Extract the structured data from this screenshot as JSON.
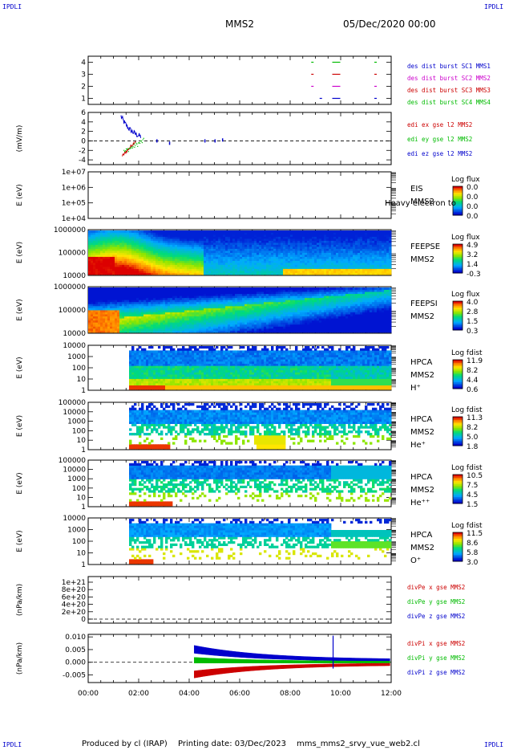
{
  "header": {
    "corner_label": "IPDLI",
    "spacecraft": "MMS2",
    "date": "05/Dec/2020 00:00"
  },
  "footer": {
    "produced_by": "Produced by cl (IRAP)",
    "printing_date": "Printing date: 03/Dec/2023",
    "script_name": "mms_mms2_srvy_vue_web2.cl"
  },
  "colors": {
    "blue": "#0000cc",
    "magenta": "#cc00cc",
    "red": "#cc0000",
    "green": "#00bb00",
    "spec_low": "#0000cc",
    "spec_high": "#cc0000"
  },
  "chart_data": [
    {
      "type": "scatter",
      "panel": "burst",
      "ylim": [
        0.5,
        4.5
      ],
      "yticks": [
        "1",
        "2",
        "3",
        "4"
      ],
      "xlim": [
        "00:00",
        "12:00"
      ],
      "series": [
        {
          "name": "des dist burst SC1 MMS1",
          "color": "#0000cc",
          "y": 1,
          "x": [
            "09:10",
            "09:40",
            "11:20"
          ]
        },
        {
          "name": "des dist burst SC2 MMS2",
          "color": "#cc00cc",
          "y": 2,
          "x": [
            "08:50",
            "09:40",
            "11:20"
          ]
        },
        {
          "name": "des dist burst SC3 MMS3",
          "color": "#cc0000",
          "y": 3,
          "x": [
            "08:50",
            "09:40",
            "11:20"
          ]
        },
        {
          "name": "des dist burst SC4 MMS4",
          "color": "#00bb00",
          "y": 4,
          "x": [
            "08:50",
            "09:40",
            "11:20"
          ]
        }
      ]
    },
    {
      "type": "line",
      "panel": "edi",
      "ylabel": "(mV/m)",
      "ylim": [
        -5,
        6
      ],
      "yticks": [
        "-4",
        "-2",
        "0",
        "2",
        "4",
        "6"
      ],
      "series": [
        {
          "name": "edi ex gse l2 MMS2",
          "color": "#cc0000"
        },
        {
          "name": "edi ey gse l2 MMS2",
          "color": "#00bb00"
        },
        {
          "name": "edi ez gse l2 MMS2",
          "color": "#0000cc"
        }
      ]
    },
    {
      "type": "heatmap",
      "panel": "eis",
      "ylabel": "E (eV)",
      "yticks": [
        "1e+04",
        "1e+05",
        "1e+06",
        "1e+07"
      ],
      "instrument": [
        "EIS",
        "MMS2"
      ],
      "overlap_label": "Heavy electron to",
      "colorbar": {
        "title": "Log flux",
        "ticks": [
          "0.0",
          "0.0",
          "0.0",
          "0.0"
        ]
      }
    },
    {
      "type": "heatmap",
      "panel": "feepse",
      "ylabel": "E (eV)",
      "yticks": [
        "10000",
        "100000",
        "1000000"
      ],
      "instrument": [
        "FEEPSE",
        "MMS2"
      ],
      "colorbar": {
        "title": "Log flux",
        "ticks": [
          "4.9",
          "3.2",
          "1.4",
          "-0.3"
        ]
      }
    },
    {
      "type": "heatmap",
      "panel": "feepsi",
      "ylabel": "E (eV)",
      "yticks": [
        "10000",
        "100000",
        "1000000"
      ],
      "instrument": [
        "FEEPSI",
        "MMS2"
      ],
      "colorbar": {
        "title": "Log flux",
        "ticks": [
          "4.0",
          "2.8",
          "1.5",
          "0.3"
        ]
      }
    },
    {
      "type": "heatmap",
      "panel": "hpca_h",
      "ylabel": "E (eV)",
      "yticks": [
        "1",
        "10",
        "100",
        "1000",
        "10000"
      ],
      "instrument": [
        "HPCA",
        "MMS2",
        "H⁺"
      ],
      "colorbar": {
        "title": "Log fdist",
        "ticks": [
          "11.9",
          "8.2",
          "4.4",
          "0.6"
        ]
      }
    },
    {
      "type": "heatmap",
      "panel": "hpca_he",
      "ylabel": "E (eV)",
      "yticks": [
        "1",
        "10",
        "100",
        "1000",
        "10000",
        "100000"
      ],
      "instrument": [
        "HPCA",
        "MMS2",
        "He⁺"
      ],
      "colorbar": {
        "title": "Log fdist",
        "ticks": [
          "11.3",
          "8.2",
          "5.0",
          "1.8"
        ]
      }
    },
    {
      "type": "heatmap",
      "panel": "hpca_hepp",
      "ylabel": "E (eV)",
      "yticks": [
        "1",
        "10",
        "100",
        "1000",
        "10000",
        "100000"
      ],
      "instrument": [
        "HPCA",
        "MMS2",
        "He⁺⁺"
      ],
      "colorbar": {
        "title": "Log fdist",
        "ticks": [
          "10.5",
          "7.5",
          "4.5",
          "1.5"
        ]
      }
    },
    {
      "type": "heatmap",
      "panel": "hpca_o",
      "ylabel": "E (eV)",
      "yticks": [
        "1",
        "10",
        "100",
        "1000",
        "10000"
      ],
      "instrument": [
        "HPCA",
        "MMS2",
        "O⁺"
      ],
      "colorbar": {
        "title": "Log fdist",
        "ticks": [
          "11.5",
          "8.6",
          "5.8",
          "3.0"
        ]
      }
    },
    {
      "type": "line",
      "panel": "divpe",
      "ylabel": "(nPa/km)",
      "yticks": [
        "0",
        "2e+20",
        "4e+20",
        "6e+20",
        "8e+20",
        "1e+21"
      ],
      "series": [
        {
          "name": "divPe x gse MMS2",
          "color": "#cc0000"
        },
        {
          "name": "divPe y gse MMS2",
          "color": "#00bb00"
        },
        {
          "name": "divPe z gse MMS2",
          "color": "#0000cc"
        }
      ]
    },
    {
      "type": "line",
      "panel": "divpi",
      "ylabel": "(nPa/km)",
      "ylim": [
        -0.008,
        0.011
      ],
      "yticks": [
        "-0.005",
        "0.000",
        "0.005",
        "0.010"
      ],
      "xticks": [
        "00:00",
        "02:00",
        "04:00",
        "06:00",
        "08:00",
        "10:00",
        "12:00"
      ],
      "series": [
        {
          "name": "divPi x gse MMS2",
          "color": "#cc0000"
        },
        {
          "name": "divPi y gse MMS2",
          "color": "#00bb00"
        },
        {
          "name": "divPi z gse MMS2",
          "color": "#0000cc"
        }
      ]
    }
  ]
}
